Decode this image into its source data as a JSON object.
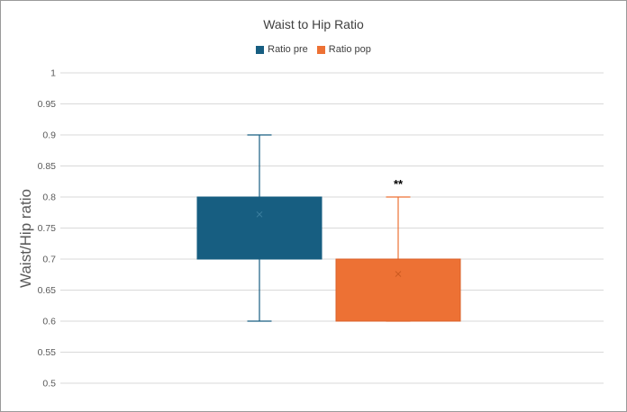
{
  "chart_data": {
    "type": "box",
    "title": "Waist to Hip Ratio",
    "ylabel": "Waist/Hip ratio",
    "xlabel": "",
    "ylim": [
      0.5,
      1
    ],
    "yticks": [
      "0.5",
      "0.55",
      "0.6",
      "0.65",
      "0.7",
      "0.75",
      "0.8",
      "0.85",
      "0.9",
      "0.95",
      "1"
    ],
    "grid": true,
    "legend_position": "top",
    "series": [
      {
        "name": "Ratio pre",
        "color": "#175E81",
        "min": 0.6,
        "q1": 0.7,
        "median": 0.7,
        "q3": 0.8,
        "max": 0.9,
        "mean": 0.772
      },
      {
        "name": "Ratio pop",
        "color": "#ED7134",
        "min": 0.6,
        "q1": 0.6,
        "median": 0.6,
        "q3": 0.7,
        "max": 0.8,
        "mean": 0.676
      }
    ],
    "annotations": [
      {
        "text": "**",
        "series": "Ratio pop"
      }
    ]
  }
}
